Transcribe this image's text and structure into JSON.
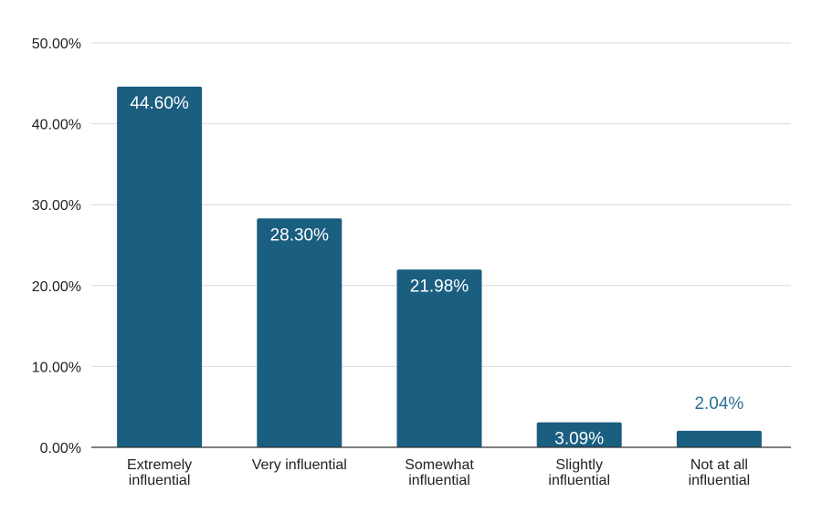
{
  "chart_data": {
    "type": "bar",
    "title": "",
    "xlabel": "",
    "ylabel": "",
    "categories": [
      [
        "Extremely",
        "influential"
      ],
      [
        "Very influential"
      ],
      [
        "Somewhat",
        "influential"
      ],
      [
        "Slightly",
        "influential"
      ],
      [
        "Not at all",
        "influential"
      ]
    ],
    "values": [
      44.6,
      28.3,
      21.98,
      3.09,
      2.04
    ],
    "data_labels": [
      "44.60%",
      "28.30%",
      "21.98%",
      "3.09%",
      "2.04%"
    ],
    "ylim": [
      0,
      50
    ],
    "yticks": [
      0,
      10,
      20,
      30,
      40,
      50
    ],
    "ytick_labels": [
      "0.00%",
      "10.00%",
      "20.00%",
      "30.00%",
      "40.00%",
      "50.00%"
    ],
    "grid": true,
    "legend": "none",
    "colors": {
      "bar": "#1a5e80",
      "label_inside": "#ffffff",
      "label_outside": "#2e6f93",
      "grid": "#d9d9d9",
      "axis": "#333333"
    }
  }
}
